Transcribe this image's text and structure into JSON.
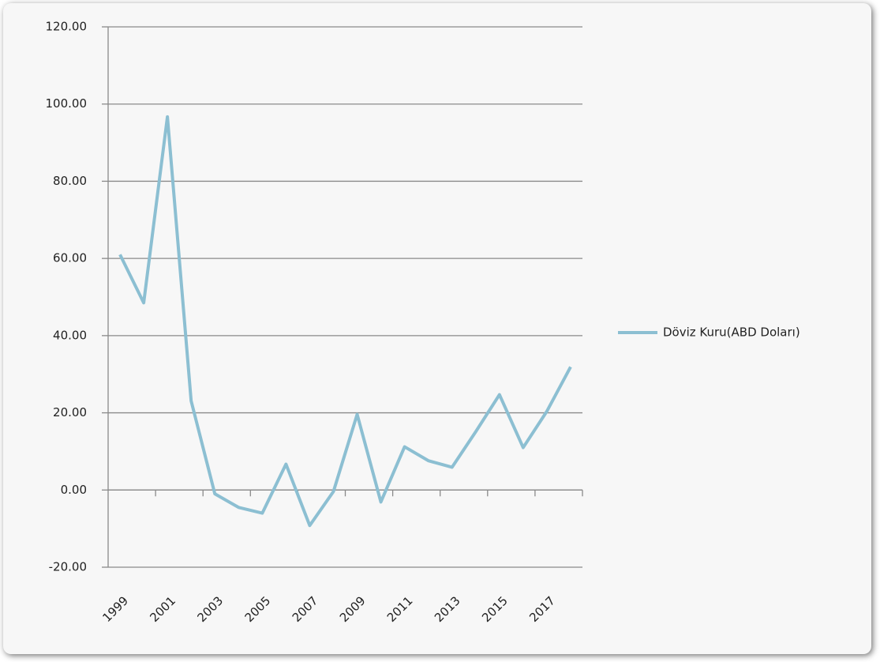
{
  "chart_data": {
    "type": "line",
    "categories": [
      "1999",
      null,
      "2001",
      null,
      "2003",
      null,
      "2005",
      null,
      "2007",
      null,
      "2009",
      null,
      "2011",
      null,
      "2013",
      null,
      "2015",
      null,
      "2017",
      null
    ],
    "series": [
      {
        "name": "Döviz Kuru(ABD Doları)",
        "color": "#8cbfd2",
        "values": [
          61,
          48.5,
          96.7,
          23.1,
          -1,
          -4.5,
          -6,
          6.7,
          -9.2,
          -0.4,
          19.6,
          -3.1,
          11.2,
          7.6,
          5.9,
          15.1,
          24.7,
          11,
          20.4,
          31.9
        ]
      }
    ],
    "ylim": [
      -20,
      120
    ],
    "yticks": [
      {
        "value": -20,
        "label": "-20.00"
      },
      {
        "value": 0,
        "label": "0.00"
      },
      {
        "value": 20,
        "label": "20.00"
      },
      {
        "value": 40,
        "label": "40.00"
      },
      {
        "value": 60,
        "label": "60.00"
      },
      {
        "value": 80,
        "label": "80.00"
      },
      {
        "value": 100,
        "label": "100.00"
      },
      {
        "value": 120,
        "label": "120.00"
      }
    ],
    "grid": true,
    "legend": "right"
  }
}
